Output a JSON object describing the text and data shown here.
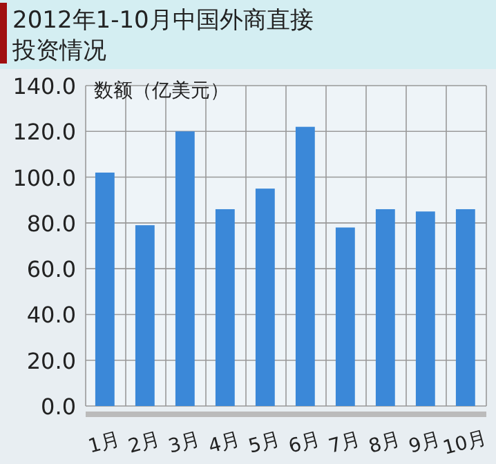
{
  "chart_data": {
    "type": "bar",
    "title": "2012年1-10月中国外商直接投资情况",
    "ylabel": "数额（亿美元）",
    "categories": [
      "1月",
      "2月",
      "3月",
      "4月",
      "5月",
      "6月",
      "7月",
      "8月",
      "9月",
      "10月"
    ],
    "values": [
      102,
      79,
      120,
      86,
      95,
      122,
      78,
      86,
      85,
      86
    ],
    "color": "#3b88d8",
    "ylim": [
      0,
      140
    ],
    "yticks": [
      {
        "value": 0,
        "label": "0.0"
      },
      {
        "value": 20,
        "label": "20.0"
      },
      {
        "value": 40,
        "label": "40.0"
      },
      {
        "value": 60,
        "label": "60.0"
      },
      {
        "value": 80,
        "label": "80.0"
      },
      {
        "value": 100,
        "label": "100.0"
      },
      {
        "value": 120,
        "label": "120.0"
      },
      {
        "value": 140,
        "label": "140.0"
      }
    ],
    "grid": true
  }
}
